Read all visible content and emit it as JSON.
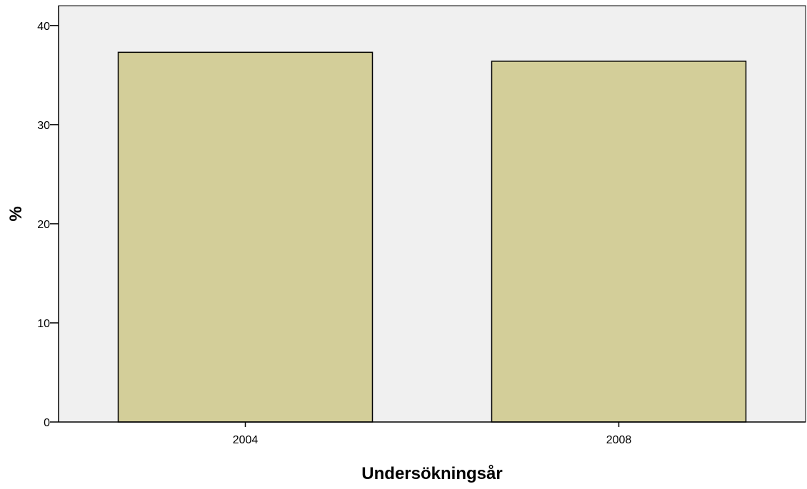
{
  "chart_data": {
    "type": "bar",
    "title": "",
    "xlabel": "Undersökningsår",
    "ylabel": "%",
    "categories": [
      "2004",
      "2008"
    ],
    "values": [
      37.3,
      36.4
    ],
    "ylim": [
      0,
      42
    ],
    "yticks": [
      "0",
      "10",
      "20",
      "30",
      "40"
    ],
    "grid": false,
    "legend": "none"
  },
  "colors": {
    "plot_background": "#f0f0f0",
    "bar_fill": "#d3ce99",
    "bar_stroke": "#000000"
  }
}
